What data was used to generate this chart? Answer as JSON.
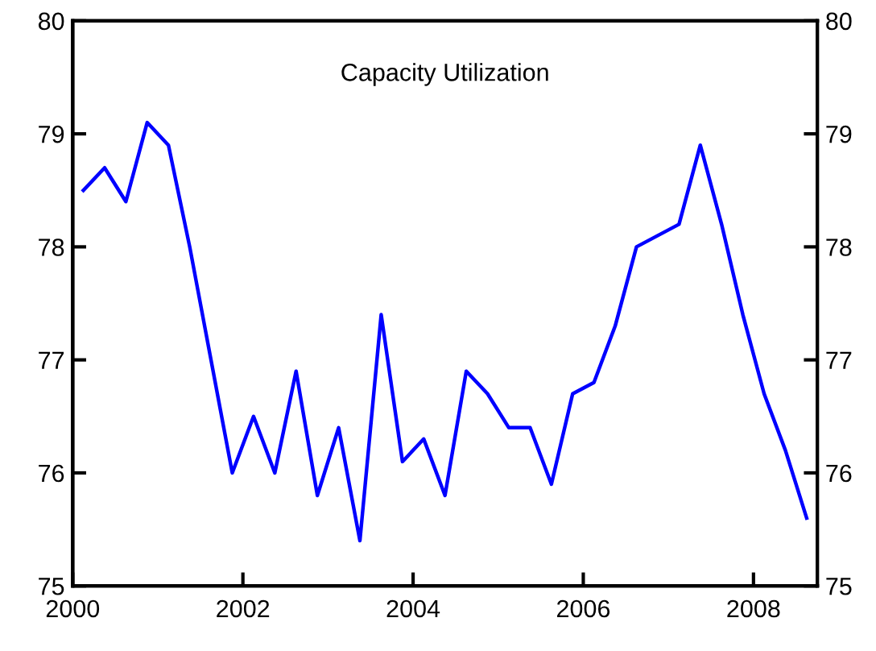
{
  "chart_data": {
    "type": "line",
    "title": "Capacity Utilization",
    "x": [
      2000.125,
      2000.375,
      2000.625,
      2000.875,
      2001.125,
      2001.375,
      2001.625,
      2001.875,
      2002.125,
      2002.375,
      2002.625,
      2002.875,
      2003.125,
      2003.375,
      2003.625,
      2003.875,
      2004.125,
      2004.375,
      2004.625,
      2004.875,
      2005.125,
      2005.375,
      2005.625,
      2005.875,
      2006.125,
      2006.375,
      2006.625,
      2006.875,
      2007.125,
      2007.375,
      2007.625,
      2007.875,
      2008.125,
      2008.375,
      2008.625
    ],
    "series": [
      {
        "color": "#0000ff",
        "values": [
          78.5,
          78.7,
          78.4,
          79.1,
          78.9,
          78.0,
          77.0,
          76.0,
          76.5,
          76.0,
          76.9,
          75.8,
          76.4,
          75.4,
          77.4,
          76.1,
          76.3,
          75.8,
          76.9,
          76.7,
          76.4,
          76.4,
          75.9,
          76.7,
          76.8,
          77.3,
          78.0,
          78.1,
          78.2,
          78.9,
          78.2,
          77.4,
          76.7,
          76.2,
          75.6
        ]
      }
    ],
    "xlim": [
      2000,
      2008.75
    ],
    "xticks": [
      2000,
      2002,
      2004,
      2006,
      2008
    ],
    "ylim": [
      75,
      80
    ],
    "yticks": [
      75,
      76,
      77,
      78,
      79,
      80
    ],
    "y2lim": [
      75,
      80
    ],
    "y2ticks": [
      75,
      76,
      77,
      78,
      79,
      80
    ],
    "marker": "none",
    "line_style": "solid"
  }
}
